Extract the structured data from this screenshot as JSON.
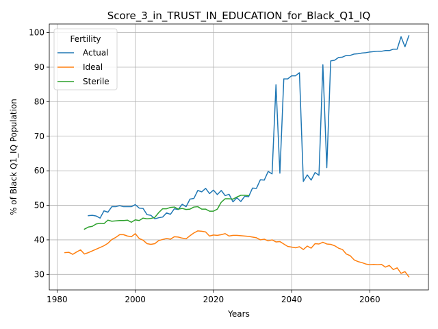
{
  "chart_data": {
    "type": "line",
    "title": "Score_3_in_TRUST_IN_EDUCATION_for_Black_Q1_IQ",
    "xlabel": "Years",
    "ylabel": "% of Black Q1_IQ Population",
    "xlim": [
      1978,
      2075
    ],
    "ylim": [
      25.5,
      102.5
    ],
    "xticks": [
      1980,
      2000,
      2020,
      2040,
      2060
    ],
    "yticks": [
      30,
      40,
      50,
      60,
      70,
      80,
      90,
      100
    ],
    "grid": true,
    "legend": {
      "title": "Fertility",
      "placement": "upper-left"
    },
    "series": [
      {
        "name": "Actual",
        "color": "#1f77b4",
        "x": [
          1988,
          1989,
          1990,
          1991,
          1992,
          1993,
          1994,
          1995,
          1996,
          1997,
          1998,
          1999,
          2000,
          2001,
          2002,
          2003,
          2004,
          2005,
          2006,
          2007,
          2008,
          2009,
          2010,
          2011,
          2012,
          2013,
          2014,
          2015,
          2016,
          2017,
          2018,
          2019,
          2020,
          2021,
          2022,
          2023,
          2024,
          2025,
          2026,
          2027,
          2028,
          2029,
          2030,
          2031,
          2032,
          2033,
          2034,
          2035,
          2036,
          2037,
          2038,
          2039,
          2040,
          2041,
          2042,
          2043,
          2044,
          2045,
          2046,
          2047,
          2048,
          2049,
          2050,
          2051,
          2052,
          2053,
          2054,
          2055,
          2056,
          2057,
          2058,
          2059,
          2060,
          2061,
          2062,
          2063,
          2064,
          2065,
          2066,
          2067,
          2068,
          2069,
          2070
        ],
        "values": [
          47.0,
          47.1,
          46.9,
          46.3,
          48.4,
          48.0,
          49.6,
          49.6,
          49.9,
          49.6,
          49.6,
          49.6,
          50.2,
          49.2,
          49.1,
          47.3,
          47.1,
          46.1,
          46.4,
          46.6,
          47.8,
          47.4,
          49.0,
          48.8,
          50.3,
          49.6,
          51.8,
          52.0,
          54.3,
          53.9,
          54.9,
          53.4,
          54.4,
          53.1,
          54.3,
          52.8,
          53.2,
          51.0,
          52.2,
          51.1,
          52.6,
          52.5,
          55.0,
          54.9,
          57.4,
          57.3,
          59.8,
          59.1,
          84.9,
          59.3,
          86.6,
          86.6,
          87.5,
          87.5,
          88.4,
          56.9,
          58.8,
          57.3,
          59.5,
          58.7,
          90.7,
          60.9,
          91.8,
          92.0,
          92.8,
          92.9,
          93.4,
          93.4,
          93.8,
          93.9,
          94.1,
          94.2,
          94.4,
          94.5,
          94.6,
          94.6,
          94.8,
          94.8,
          95.2,
          95.2,
          98.8,
          95.9,
          99.1
        ]
      },
      {
        "name": "Ideal",
        "color": "#ff7f0e",
        "x": [
          1982,
          1983,
          1984,
          1985,
          1986,
          1987,
          1988,
          1989,
          1990,
          1991,
          1992,
          1993,
          1994,
          1995,
          1996,
          1997,
          1998,
          1999,
          2000,
          2001,
          2002,
          2003,
          2004,
          2005,
          2006,
          2007,
          2008,
          2009,
          2010,
          2011,
          2012,
          2013,
          2014,
          2015,
          2016,
          2017,
          2018,
          2019,
          2020,
          2021,
          2022,
          2023,
          2024,
          2025,
          2026,
          2027,
          2028,
          2029,
          2030,
          2031,
          2032,
          2033,
          2034,
          2035,
          2036,
          2037,
          2038,
          2039,
          2040,
          2041,
          2042,
          2043,
          2044,
          2045,
          2046,
          2047,
          2048,
          2049,
          2050,
          2051,
          2052,
          2053,
          2054,
          2055,
          2056,
          2057,
          2058,
          2059,
          2060,
          2061,
          2062,
          2063,
          2064,
          2065,
          2066,
          2067,
          2068,
          2069,
          2070
        ],
        "values": [
          36.3,
          36.4,
          35.8,
          36.5,
          37.1,
          35.9,
          36.3,
          36.8,
          37.3,
          37.8,
          38.3,
          39.0,
          40.1,
          40.7,
          41.5,
          41.5,
          41.1,
          40.9,
          41.8,
          40.4,
          39.9,
          38.9,
          38.7,
          38.9,
          39.8,
          40.1,
          40.4,
          40.2,
          40.9,
          40.8,
          40.5,
          40.3,
          41.2,
          42.0,
          42.6,
          42.5,
          42.3,
          41.1,
          41.4,
          41.3,
          41.5,
          41.8,
          41.1,
          41.3,
          41.3,
          41.2,
          41.1,
          41.0,
          40.8,
          40.6,
          40.0,
          40.2,
          39.7,
          40.0,
          39.4,
          39.5,
          38.8,
          38.1,
          37.9,
          37.7,
          38.0,
          37.2,
          38.2,
          37.6,
          38.9,
          38.8,
          39.3,
          38.8,
          38.7,
          38.3,
          37.6,
          37.2,
          35.9,
          35.4,
          34.2,
          33.7,
          33.4,
          33.0,
          32.8,
          32.9,
          32.8,
          32.9,
          32.1,
          32.6,
          31.4,
          31.9,
          30.3,
          30.8,
          29.3
        ]
      },
      {
        "name": "Sterile",
        "color": "#2ca02c",
        "x": [
          1987,
          1988,
          1989,
          1990,
          1991,
          1992,
          1993,
          1994,
          1995,
          1996,
          1997,
          1998,
          1999,
          2000,
          2001,
          2002,
          2003,
          2004,
          2005,
          2006,
          2007,
          2008,
          2009,
          2010,
          2011,
          2012,
          2013,
          2014,
          2015,
          2016,
          2017,
          2018,
          2019,
          2020,
          2021,
          2022,
          2023,
          2024,
          2025,
          2026,
          2027,
          2028,
          2029
        ],
        "values": [
          43.1,
          43.7,
          43.9,
          44.6,
          44.8,
          44.7,
          45.7,
          45.4,
          45.5,
          45.6,
          45.6,
          45.7,
          45.1,
          45.8,
          45.6,
          46.3,
          46.1,
          46.2,
          46.5,
          47.9,
          49.0,
          49.0,
          49.4,
          49.5,
          48.9,
          49.1,
          48.8,
          48.9,
          49.5,
          49.6,
          48.9,
          48.9,
          48.3,
          48.3,
          48.9,
          50.9,
          51.9,
          51.9,
          51.8,
          52.4,
          52.9,
          52.9,
          52.8
        ]
      }
    ]
  }
}
